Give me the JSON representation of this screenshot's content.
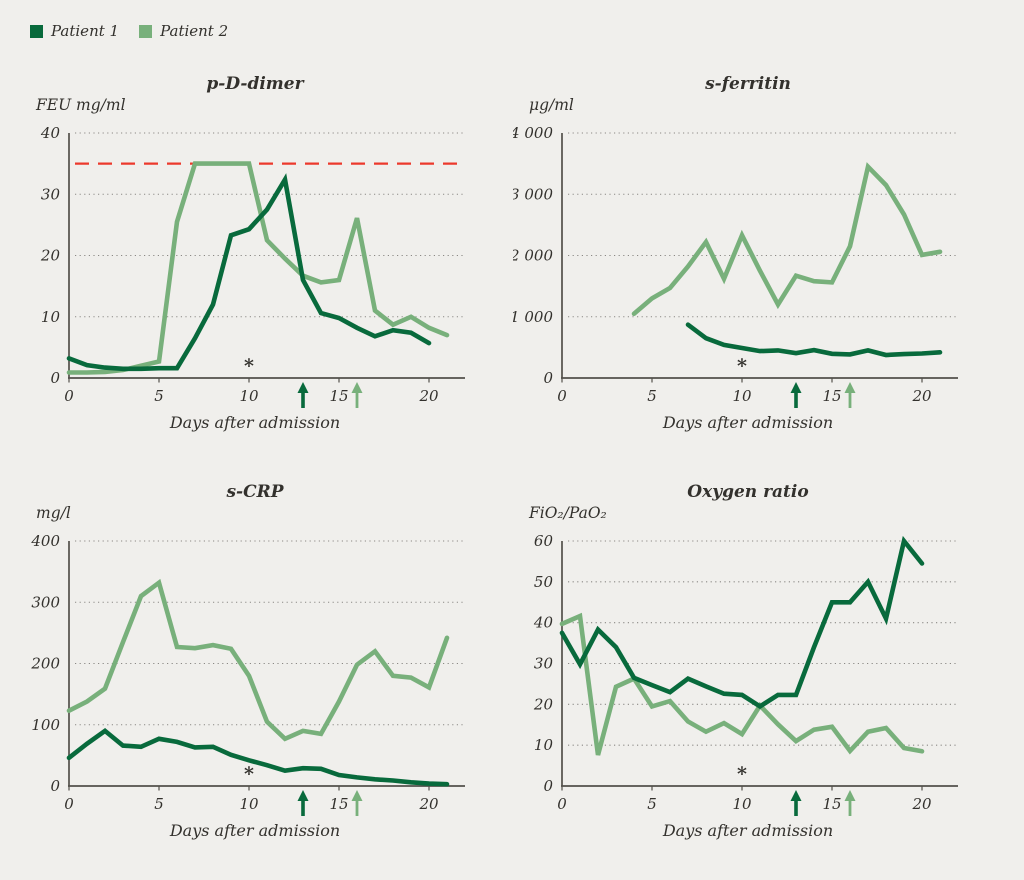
{
  "palette": {
    "patient1_green": "#086a3c",
    "patient2_green": "#78b07b",
    "threshold_red": "#ec392c",
    "background": "#f0efec",
    "axis": "#53504b",
    "grid": "#8b8985",
    "text": "#33312d"
  },
  "legend": {
    "items": [
      {
        "label": "Patient 1",
        "color": "#086a3c"
      },
      {
        "label": "Patient 2",
        "color": "#78b07b"
      }
    ]
  },
  "chart_data": [
    {
      "type": "line",
      "title": "p-D-dimer",
      "ylabel": "FEU mg/ml",
      "xlabel": "Days after admission",
      "ylim": [
        0,
        40
      ],
      "yticks": [
        0,
        10,
        20,
        30,
        40
      ],
      "ytick_labels": [
        "0",
        "10",
        "20",
        "30",
        "40"
      ],
      "xticks": [
        0,
        5,
        10,
        15,
        20
      ],
      "xlim": [
        0,
        22
      ],
      "grid": "horizontal-dotted",
      "threshold": {
        "y": 35,
        "style": "dashed",
        "color": "#ec392c"
      },
      "annotations": {
        "asterisk_day": 10,
        "patient1_arrow_day": 13,
        "patient2_arrow_day": 16
      },
      "series": [
        {
          "name": "Patient 2",
          "color": "#78b07b",
          "x": [
            0,
            1,
            2,
            3,
            4,
            5,
            6,
            7,
            8,
            9,
            10,
            11,
            12,
            13,
            14,
            15,
            16,
            17,
            18,
            19,
            20,
            21
          ],
          "values": [
            0.9,
            0.9,
            1.0,
            1.3,
            2.0,
            2.7,
            25.5,
            35,
            35,
            35,
            35,
            22.5,
            19.5,
            16.7,
            15.6,
            16,
            26.1,
            11,
            8.7,
            10,
            8.2,
            7
          ]
        },
        {
          "name": "Patient 1",
          "color": "#086a3c",
          "x": [
            0,
            1,
            2,
            3,
            4,
            5,
            6,
            7,
            8,
            9,
            10,
            11,
            12,
            13,
            14,
            15,
            16,
            17,
            18,
            19,
            20
          ],
          "values": [
            3.2,
            2.1,
            1.7,
            1.5,
            1.5,
            1.6,
            1.6,
            6.5,
            12,
            23.3,
            24.3,
            27.5,
            32.4,
            16,
            10.6,
            9.8,
            8.2,
            6.8,
            7.8,
            7.4,
            5.7
          ]
        }
      ]
    },
    {
      "type": "line",
      "title": "s-ferritin",
      "ylabel": "μg/ml",
      "xlabel": "Days after admission",
      "ylim": [
        0,
        4000
      ],
      "yticks": [
        0,
        1000,
        2000,
        3000,
        4000
      ],
      "ytick_labels": [
        "0",
        "1 000",
        "2 000",
        "3 000",
        "4 000"
      ],
      "xticks": [
        0,
        5,
        10,
        15,
        20
      ],
      "xlim": [
        0,
        22
      ],
      "grid": "horizontal-dotted",
      "threshold": null,
      "annotations": {
        "asterisk_day": 10,
        "patient1_arrow_day": 13,
        "patient2_arrow_day": 16
      },
      "series": [
        {
          "name": "Patient 2",
          "color": "#78b07b",
          "x": [
            4,
            5,
            6,
            7,
            8,
            9,
            10,
            11,
            12,
            13,
            14,
            15,
            16,
            17,
            18,
            19,
            20,
            21
          ],
          "values": [
            1050,
            1300,
            1470,
            1820,
            2220,
            1620,
            2330,
            1750,
            1200,
            1670,
            1580,
            1560,
            2150,
            3450,
            3150,
            2670,
            2010,
            2060
          ]
        },
        {
          "name": "Patient 1",
          "color": "#086a3c",
          "x": [
            7,
            8,
            9,
            10,
            11,
            12,
            13,
            14,
            15,
            16,
            17,
            18,
            19,
            20,
            21
          ],
          "values": [
            870,
            650,
            540,
            490,
            440,
            450,
            405,
            455,
            395,
            385,
            450,
            375,
            390,
            400,
            420
          ]
        }
      ]
    },
    {
      "type": "line",
      "title": "s-CRP",
      "ylabel": "mg/l",
      "xlabel": "Days after admission",
      "ylim": [
        0,
        400
      ],
      "yticks": [
        0,
        100,
        200,
        300,
        400
      ],
      "ytick_labels": [
        "0",
        "100",
        "200",
        "300",
        "400"
      ],
      "xticks": [
        0,
        5,
        10,
        15,
        20
      ],
      "xlim": [
        0,
        22
      ],
      "grid": "horizontal-dotted",
      "threshold": null,
      "annotations": {
        "asterisk_day": 10,
        "patient1_arrow_day": 13,
        "patient2_arrow_day": 16
      },
      "series": [
        {
          "name": "Patient 2",
          "color": "#78b07b",
          "x": [
            0,
            1,
            2,
            3,
            4,
            5,
            6,
            7,
            8,
            9,
            10,
            11,
            12,
            13,
            14,
            15,
            16,
            17,
            18,
            19,
            20,
            21
          ],
          "values": [
            123,
            138,
            159,
            235,
            310,
            332,
            227,
            225,
            230,
            224,
            180,
            105,
            77,
            90,
            85,
            138,
            198,
            220,
            180,
            177,
            161,
            242
          ]
        },
        {
          "name": "Patient 1",
          "color": "#086a3c",
          "x": [
            0,
            1,
            2,
            3,
            4,
            5,
            6,
            7,
            8,
            9,
            10,
            11,
            12,
            13,
            14,
            15,
            16,
            17,
            18,
            19,
            20,
            21
          ],
          "values": [
            46,
            69,
            90,
            66,
            64,
            77,
            72,
            63,
            64,
            51,
            42,
            34,
            25,
            29,
            28,
            18,
            14,
            11,
            9,
            6,
            4,
            3
          ]
        }
      ]
    },
    {
      "type": "line",
      "title": "Oxygen ratio",
      "ylabel": "FiO₂/PaO₂",
      "xlabel": "Days after admission",
      "ylim": [
        0,
        60
      ],
      "yticks": [
        0,
        10,
        20,
        30,
        40,
        50,
        60
      ],
      "ytick_labels": [
        "0",
        "10",
        "20",
        "30",
        "40",
        "50",
        "60"
      ],
      "xticks": [
        0,
        5,
        10,
        15,
        20
      ],
      "xlim": [
        0,
        22
      ],
      "grid": "horizontal-dotted",
      "threshold": null,
      "annotations": {
        "asterisk_day": 10,
        "patient1_arrow_day": 13,
        "patient2_arrow_day": 16
      },
      "series": [
        {
          "name": "Patient 2",
          "color": "#78b07b",
          "x": [
            0,
            1,
            2,
            3,
            4,
            5,
            6,
            7,
            8,
            9,
            10,
            11,
            12,
            13,
            14,
            15,
            16,
            17,
            18,
            19,
            20
          ],
          "values": [
            39.7,
            41.6,
            7.6,
            24.3,
            26.3,
            19.5,
            20.8,
            15.8,
            13.3,
            15.4,
            12.7,
            19.7,
            15.1,
            11,
            13.8,
            14.5,
            8.6,
            13.3,
            14.2,
            9.3,
            8.5
          ]
        },
        {
          "name": "Patient 1",
          "color": "#086a3c",
          "x": [
            0,
            1,
            2,
            3,
            4,
            5,
            6,
            7,
            8,
            9,
            10,
            11,
            12,
            13,
            14,
            15,
            16,
            17,
            18,
            19,
            20
          ],
          "values": [
            37.5,
            29.8,
            38.3,
            34,
            26.5,
            24.7,
            23,
            26.3,
            24.4,
            22.6,
            22.3,
            19.5,
            22.3,
            22.3,
            34,
            45,
            45,
            50,
            41,
            60,
            54.5
          ]
        }
      ]
    }
  ]
}
